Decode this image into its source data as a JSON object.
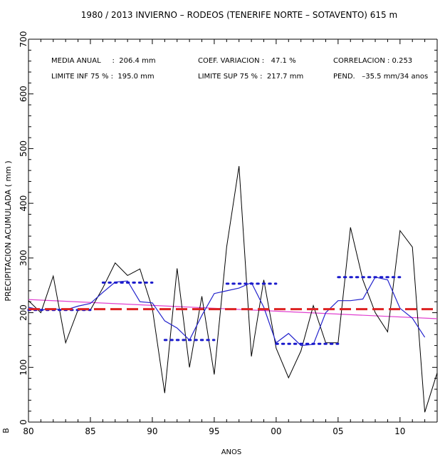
{
  "chart_data": {
    "type": "line",
    "title": "1980 / 2013  INVIERNO – RODEOS (TENERIFE NORTE – SOTAVENTO)   615 m",
    "xlabel": "ANOS",
    "ylabel": "PRECIPITACION ACUMULADA  ( mm )",
    "corner_label": "B",
    "xlim": [
      1980,
      2013
    ],
    "ylim": [
      0,
      700
    ],
    "x_ticks": [
      {
        "value": 1980,
        "label": "80"
      },
      {
        "value": 1985,
        "label": "85"
      },
      {
        "value": 1990,
        "label": "90"
      },
      {
        "value": 1995,
        "label": "95"
      },
      {
        "value": 2000,
        "label": "00"
      },
      {
        "value": 2005,
        "label": "05"
      },
      {
        "value": 2010,
        "label": "10"
      }
    ],
    "y_ticks": [
      {
        "value": 0,
        "label": "0"
      },
      {
        "value": 100,
        "label": "100"
      },
      {
        "value": 200,
        "label": "200"
      },
      {
        "value": 300,
        "label": "300"
      },
      {
        "value": 400,
        "label": "400"
      },
      {
        "value": 500,
        "label": "500"
      },
      {
        "value": 600,
        "label": "600"
      },
      {
        "value": 700,
        "label": "700"
      }
    ],
    "stats": {
      "media_label": "MEDIA ANUAL     :  206.4 mm",
      "lim_inf_label": "LIMITE INF 75 % :  195.0 mm",
      "coef_label": "COEF. VARIACION :   47.1 %",
      "lim_sup_label": "LIMITE SUP 75 % :  217.7 mm",
      "correl_label": "CORRELACION : 0.253",
      "pend_label": "PEND.   –35.5 mm/34 anos"
    },
    "series": [
      {
        "role": "annual",
        "color": "#000000",
        "x": [
          1980,
          1981,
          1982,
          1983,
          1984,
          1985,
          1986,
          1987,
          1988,
          1989,
          1990,
          1991,
          1992,
          1993,
          1994,
          1995,
          1996,
          1997,
          1998,
          1999,
          2000,
          2001,
          2002,
          2003,
          2004,
          2005,
          2006,
          2007,
          2008,
          2009,
          2010,
          2011,
          2012,
          2013
        ],
        "values": [
          222,
          200,
          267,
          145,
          205,
          205,
          245,
          291,
          268,
          280,
          208,
          53,
          281,
          100,
          230,
          87,
          320,
          468,
          120,
          260,
          135,
          81,
          130,
          213,
          145,
          145,
          356,
          260,
          200,
          165,
          350,
          320,
          18,
          90
        ]
      },
      {
        "role": "running-mean",
        "color": "#2222cc",
        "x": [
          1980,
          1981,
          1982,
          1983,
          1984,
          1985,
          1986,
          1987,
          1988,
          1989,
          1990,
          1991,
          1992,
          1993,
          1994,
          1995,
          1996,
          1997,
          1998,
          1999,
          2000,
          2001,
          2002,
          2003,
          2004,
          2005,
          2006,
          2007,
          2008,
          2009,
          2010,
          2011,
          2012
        ],
        "values": [
          210,
          205,
          207,
          205,
          212,
          217,
          237,
          256,
          258,
          220,
          218,
          185,
          172,
          150,
          195,
          235,
          240,
          245,
          255,
          210,
          145,
          162,
          140,
          142,
          200,
          222,
          222,
          225,
          265,
          260,
          208,
          190,
          155
        ]
      },
      {
        "role": "period-mean",
        "color": "#1a1acc",
        "segments": [
          {
            "x": [
              1980,
              1985
            ],
            "value": 205
          },
          {
            "x": [
              1986,
              1990
            ],
            "value": 255
          },
          {
            "x": [
              1991,
              1995
            ],
            "value": 150
          },
          {
            "x": [
              1996,
              2000
            ],
            "value": 253
          },
          {
            "x": [
              2000,
              2005
            ],
            "value": 143
          },
          {
            "x": [
              2005,
              2010
            ],
            "value": 265
          }
        ]
      },
      {
        "role": "mean",
        "color": "#dd2222",
        "x": [
          1980,
          2013
        ],
        "values": [
          206.4,
          206.4
        ]
      },
      {
        "role": "trend",
        "color": "#e040d0",
        "x": [
          1980,
          2013
        ],
        "values": [
          224,
          189
        ]
      }
    ]
  }
}
